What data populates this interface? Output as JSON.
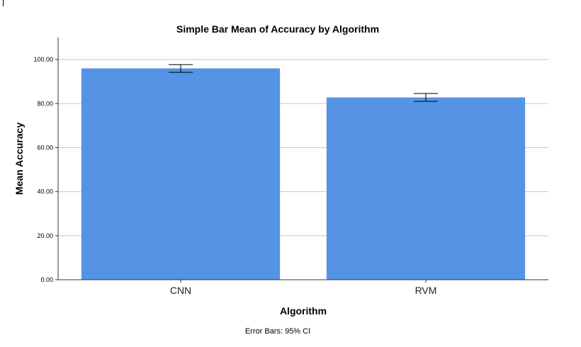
{
  "chart_data": {
    "type": "bar",
    "title": "Simple Bar Mean of Accuracy by Algorithm",
    "xlabel": "Algorithm",
    "ylabel": "Mean Accuracy",
    "categories": [
      "CNN",
      "RVM"
    ],
    "values": [
      96.0,
      82.8
    ],
    "error_bars": {
      "lower": [
        94.2,
        81.0
      ],
      "upper": [
        97.7,
        84.6
      ]
    },
    "ylim": [
      0,
      110
    ],
    "yticks": [
      "0.00",
      "20.00",
      "40.00",
      "60.00",
      "80.00",
      "100.00"
    ],
    "grid": true,
    "bar_color": "#5594e4",
    "footnote": "Error Bars: 95% CI"
  }
}
